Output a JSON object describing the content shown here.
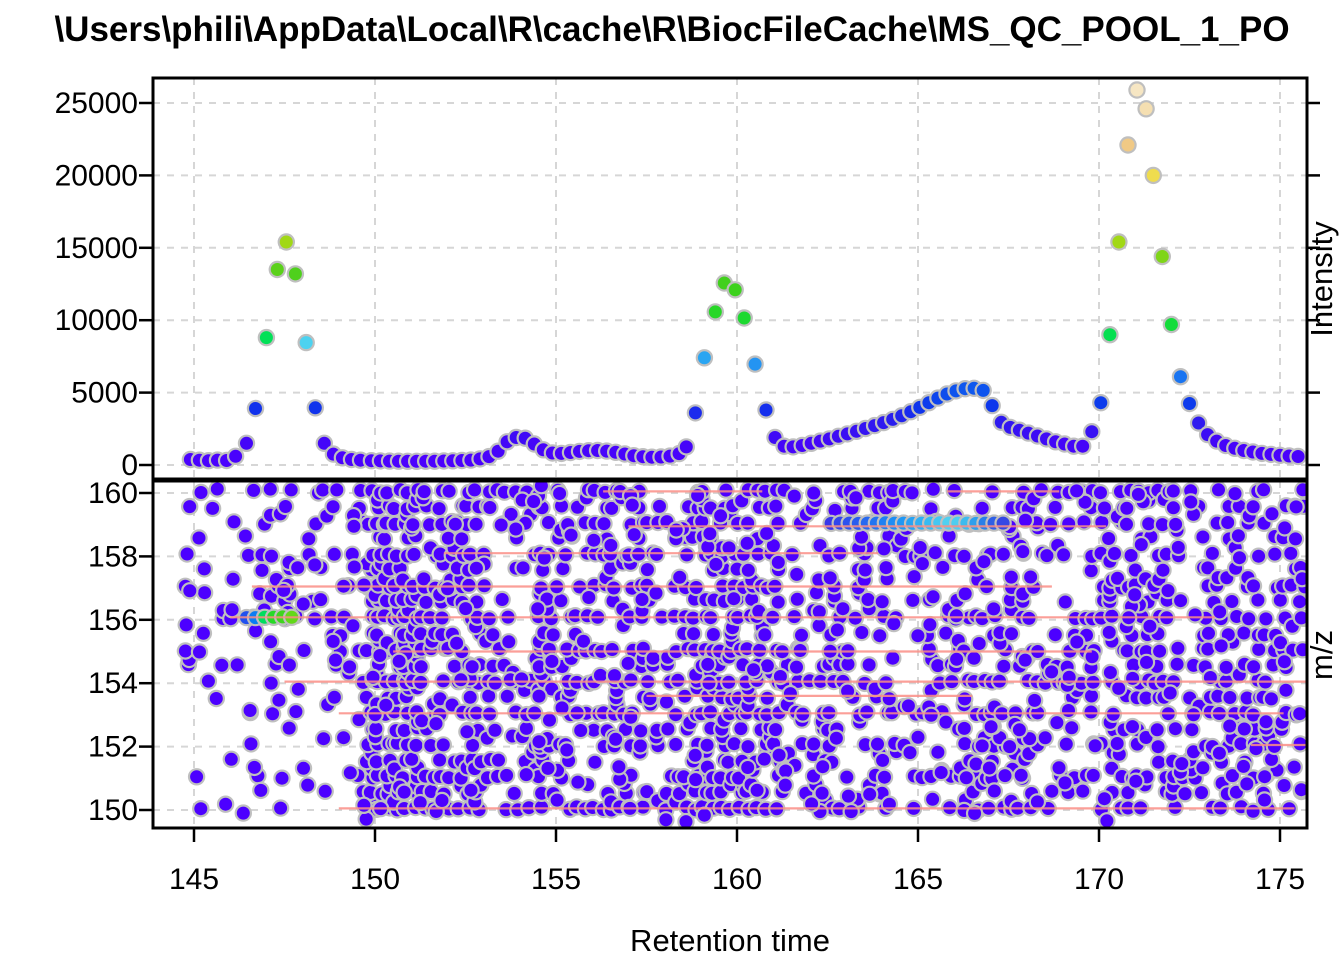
{
  "title": "\\Users\\phili\\AppData\\Local\\R\\cache\\R\\BiocFileCache\\MS_QC_POOL_1_PO",
  "axes": {
    "x": {
      "label": "Retention time",
      "ticks": [
        145,
        150,
        155,
        160,
        165,
        170,
        175
      ],
      "range": [
        143.87,
        175.75
      ]
    },
    "top_y": {
      "label": "Intensity",
      "ticks": [
        0,
        5000,
        10000,
        15000,
        20000,
        25000
      ],
      "range": [
        -970,
        26730
      ]
    },
    "bottom_y": {
      "label": "m/z",
      "ticks": [
        150,
        152,
        154,
        156,
        158,
        160
      ],
      "range": [
        149.43,
        160.38
      ]
    }
  },
  "style": {
    "background": "#FFFFFF",
    "grid_color": "#D6D6D6",
    "axis_color": "#000000",
    "point_stroke": "#BFBFBF",
    "low_color": "#4C00FF",
    "peak_line_color": "#FA8E86",
    "palette": [
      [
        0.0,
        "#4C00FF"
      ],
      [
        0.06,
        "#4406F8"
      ],
      [
        0.12,
        "#2B1DEE"
      ],
      [
        0.155,
        "#0D35EC"
      ],
      [
        0.2,
        "#0E55EE"
      ],
      [
        0.25,
        "#1E82F2"
      ],
      [
        0.3,
        "#2FB4F2"
      ],
      [
        0.327,
        "#4ED4F0"
      ],
      [
        0.335,
        "#00E05A"
      ],
      [
        0.37,
        "#11DC3C"
      ],
      [
        0.42,
        "#2FD51F"
      ],
      [
        0.5,
        "#47CF1C"
      ],
      [
        0.565,
        "#8AD618"
      ],
      [
        0.6,
        "#A8D916"
      ],
      [
        0.68,
        "#CFDB2A"
      ],
      [
        0.77,
        "#EFDC4E"
      ],
      [
        0.85,
        "#F0C985"
      ],
      [
        0.92,
        "#F4DCA8"
      ],
      [
        1.0,
        "#F6E6C4"
      ]
    ]
  },
  "chart_data": [
    {
      "type": "scatter",
      "name": "chromatogram",
      "xlabel": "Retention time",
      "ylabel": "Intensity",
      "xlim": [
        143.87,
        175.75
      ],
      "ylim": [
        -970,
        26730
      ],
      "x_ticks": [
        145,
        150,
        155,
        160,
        165,
        170,
        175
      ],
      "y_ticks": [
        0,
        5000,
        10000,
        15000,
        20000,
        25000
      ],
      "grid": "dashed",
      "color_by": "intensity, topo.colors-style gradient",
      "intensity_max_for_color": 26000,
      "points": [
        [
          144.9,
          380
        ],
        [
          145.15,
          330
        ],
        [
          145.4,
          300
        ],
        [
          145.65,
          340
        ],
        [
          145.9,
          310
        ],
        [
          146.15,
          600
        ],
        [
          146.45,
          1500
        ],
        [
          146.7,
          3900
        ],
        [
          147.0,
          8800
        ],
        [
          147.3,
          13500
        ],
        [
          147.55,
          15400
        ],
        [
          147.8,
          13200
        ],
        [
          148.1,
          8450
        ],
        [
          148.35,
          3950
        ],
        [
          148.6,
          1500
        ],
        [
          148.85,
          750
        ],
        [
          149.1,
          500
        ],
        [
          149.35,
          380
        ],
        [
          149.6,
          330
        ],
        [
          149.9,
          300
        ],
        [
          150.15,
          285
        ],
        [
          150.4,
          270
        ],
        [
          150.65,
          260
        ],
        [
          150.9,
          255
        ],
        [
          151.15,
          255
        ],
        [
          151.4,
          260
        ],
        [
          151.65,
          265
        ],
        [
          151.9,
          275
        ],
        [
          152.15,
          290
        ],
        [
          152.4,
          310
        ],
        [
          152.65,
          340
        ],
        [
          152.9,
          420
        ],
        [
          153.15,
          580
        ],
        [
          153.4,
          950
        ],
        [
          153.65,
          1600
        ],
        [
          153.9,
          1900
        ],
        [
          154.15,
          1850
        ],
        [
          154.4,
          1450
        ],
        [
          154.65,
          1050
        ],
        [
          154.9,
          830
        ],
        [
          155.15,
          800
        ],
        [
          155.4,
          860
        ],
        [
          155.65,
          940
        ],
        [
          155.9,
          990
        ],
        [
          156.15,
          1000
        ],
        [
          156.4,
          960
        ],
        [
          156.65,
          880
        ],
        [
          156.9,
          760
        ],
        [
          157.15,
          640
        ],
        [
          157.4,
          570
        ],
        [
          157.65,
          540
        ],
        [
          157.9,
          555
        ],
        [
          158.15,
          615
        ],
        [
          158.4,
          790
        ],
        [
          158.6,
          1250
        ],
        [
          158.85,
          3600
        ],
        [
          159.1,
          7400
        ],
        [
          159.4,
          10570
        ],
        [
          159.65,
          12570
        ],
        [
          159.95,
          12100
        ],
        [
          160.2,
          10150
        ],
        [
          160.5,
          6970
        ],
        [
          160.8,
          3800
        ],
        [
          161.05,
          1900
        ],
        [
          161.3,
          1300
        ],
        [
          161.55,
          1250
        ],
        [
          161.8,
          1350
        ],
        [
          162.05,
          1500
        ],
        [
          162.3,
          1650
        ],
        [
          162.55,
          1800
        ],
        [
          162.8,
          1980
        ],
        [
          163.05,
          2150
        ],
        [
          163.3,
          2330
        ],
        [
          163.55,
          2520
        ],
        [
          163.8,
          2720
        ],
        [
          164.05,
          2930
        ],
        [
          164.3,
          3150
        ],
        [
          164.55,
          3400
        ],
        [
          164.8,
          3680
        ],
        [
          165.05,
          3980
        ],
        [
          165.3,
          4300
        ],
        [
          165.55,
          4620
        ],
        [
          165.8,
          4900
        ],
        [
          166.05,
          5120
        ],
        [
          166.3,
          5270
        ],
        [
          166.55,
          5300
        ],
        [
          166.8,
          5150
        ],
        [
          167.05,
          4100
        ],
        [
          167.3,
          2950
        ],
        [
          167.55,
          2600
        ],
        [
          167.8,
          2400
        ],
        [
          168.05,
          2200
        ],
        [
          168.3,
          2000
        ],
        [
          168.55,
          1800
        ],
        [
          168.8,
          1600
        ],
        [
          169.05,
          1450
        ],
        [
          169.3,
          1300
        ],
        [
          169.55,
          1300
        ],
        [
          169.8,
          2300
        ],
        [
          170.05,
          4300
        ],
        [
          170.3,
          9000
        ],
        [
          170.55,
          15400
        ],
        [
          170.8,
          22100
        ],
        [
          171.05,
          25900
        ],
        [
          171.3,
          24600
        ],
        [
          171.5,
          20000
        ],
        [
          171.75,
          14400
        ],
        [
          172.0,
          9700
        ],
        [
          172.25,
          6100
        ],
        [
          172.5,
          4250
        ],
        [
          172.75,
          2900
        ],
        [
          173.0,
          2100
        ],
        [
          173.25,
          1650
        ],
        [
          173.5,
          1350
        ],
        [
          173.75,
          1150
        ],
        [
          174.0,
          1000
        ],
        [
          174.25,
          900
        ],
        [
          174.5,
          800
        ],
        [
          174.75,
          730
        ],
        [
          175.0,
          670
        ],
        [
          175.25,
          620
        ],
        [
          175.5,
          590
        ]
      ]
    },
    {
      "type": "scatter",
      "name": "mz-map",
      "xlabel": "Retention time",
      "ylabel": "m/z",
      "xlim": [
        143.87,
        175.75
      ],
      "ylim": [
        149.43,
        160.38
      ],
      "y_ticks": [
        150,
        152,
        154,
        156,
        158,
        160
      ],
      "grid": "dashed",
      "point_color": "#4C00FF",
      "scatter_spec": {
        "seed": 42,
        "base_prob": 0.34,
        "rt_range": [
          144.85,
          175.65
        ],
        "rt_step": 0.25,
        "rt_jitter": 0.1,
        "mz_jitter": 0.055,
        "uniform_n": 240,
        "sparse_left_rt_max": 149.6,
        "sparse_left_mz_max": 154.2,
        "sparse_left_factor": 0.45,
        "rows": [
          [
            150.05,
            1.0
          ],
          [
            150.3,
            0.22
          ],
          [
            150.55,
            0.7
          ],
          [
            150.8,
            0.22
          ],
          [
            151.05,
            1.0
          ],
          [
            151.3,
            0.22
          ],
          [
            151.55,
            0.7
          ],
          [
            151.8,
            0.22
          ],
          [
            152.05,
            1.0
          ],
          [
            152.3,
            0.22
          ],
          [
            152.55,
            0.7
          ],
          [
            152.8,
            0.22
          ],
          [
            153.05,
            1.0
          ],
          [
            153.3,
            0.22
          ],
          [
            153.55,
            0.7
          ],
          [
            153.8,
            0.22
          ],
          [
            154.05,
            1.0
          ],
          [
            154.3,
            0.22
          ],
          [
            154.55,
            0.7
          ],
          [
            154.8,
            0.22
          ],
          [
            155.05,
            1.0
          ],
          [
            155.3,
            0.22
          ],
          [
            155.55,
            0.7
          ],
          [
            155.8,
            0.22
          ],
          [
            156.08,
            1.0
          ],
          [
            156.3,
            0.22
          ],
          [
            156.6,
            0.7
          ],
          [
            156.8,
            0.22
          ],
          [
            157.05,
            1.0
          ],
          [
            157.3,
            0.22
          ],
          [
            157.6,
            0.7
          ],
          [
            157.8,
            0.22
          ],
          [
            158.05,
            1.0
          ],
          [
            158.3,
            0.22
          ],
          [
            158.6,
            0.7
          ],
          [
            158.85,
            0.22
          ],
          [
            159.05,
            1.0
          ],
          [
            159.3,
            0.22
          ],
          [
            159.55,
            0.7
          ],
          [
            159.8,
            0.22
          ],
          [
            160.05,
            1.0
          ]
        ],
        "density_bands": [
          [
            144.85,
            146.7,
            0.8
          ],
          [
            146.7,
            149.6,
            1.0
          ],
          [
            149.85,
            151.35,
            3.2
          ],
          [
            151.35,
            153.25,
            2.2
          ],
          [
            153.25,
            154.5,
            1.1
          ],
          [
            154.5,
            157.7,
            1.7
          ],
          [
            157.7,
            158.55,
            1.3
          ],
          [
            158.55,
            161.35,
            2.3
          ],
          [
            161.35,
            162.1,
            1.0
          ],
          [
            162.1,
            164.6,
            1.3
          ],
          [
            164.6,
            165.8,
            1.1
          ],
          [
            165.8,
            168.3,
            1.55
          ],
          [
            168.3,
            169.4,
            1.1
          ],
          [
            169.4,
            172.35,
            1.8
          ],
          [
            172.35,
            173.0,
            1.2
          ],
          [
            173.0,
            175.7,
            1.45
          ]
        ]
      },
      "highlight_points": [
        [
          146.45,
          156.07,
          "#2050EE"
        ],
        [
          146.7,
          156.07,
          "#0B7CF3"
        ],
        [
          146.95,
          156.08,
          "#00DD5E"
        ],
        [
          147.2,
          156.08,
          "#27D928"
        ],
        [
          147.45,
          156.09,
          "#3FD41F"
        ],
        [
          147.7,
          156.08,
          "#63D81A"
        ],
        [
          162.6,
          159.04,
          "#3937EA"
        ],
        [
          162.85,
          159.05,
          "#3345EC"
        ],
        [
          163.1,
          159.05,
          "#2E51EE"
        ],
        [
          163.35,
          159.04,
          "#2A5DEF"
        ],
        [
          163.6,
          159.05,
          "#2669F0"
        ],
        [
          163.85,
          159.05,
          "#2275F1"
        ],
        [
          164.1,
          159.06,
          "#1F81F2"
        ],
        [
          164.35,
          159.05,
          "#1D8DF4"
        ],
        [
          164.6,
          159.05,
          "#1F97F4"
        ],
        [
          164.85,
          159.04,
          "#27A3F3"
        ],
        [
          165.1,
          159.05,
          "#2FAFF3"
        ],
        [
          165.35,
          159.05,
          "#38BBF2"
        ],
        [
          165.6,
          159.06,
          "#45C7F1"
        ],
        [
          165.85,
          159.05,
          "#50D0F0"
        ],
        [
          166.1,
          159.05,
          "#4FCDEF"
        ],
        [
          166.35,
          159.05,
          "#3DBBEE"
        ],
        [
          166.6,
          159.04,
          "#2F9FEC"
        ],
        [
          166.85,
          159.05,
          "#2A7FE8"
        ],
        [
          167.1,
          159.05,
          "#2E5FE6"
        ],
        [
          167.35,
          159.05,
          "#3648E4"
        ]
      ],
      "peak_lines": [
        [
          160.05,
          156.3,
          160.7
        ],
        [
          160.05,
          165.8,
          168.9
        ],
        [
          158.95,
          157.0,
          170.2
        ],
        [
          158.1,
          151.9,
          163.9
        ],
        [
          157.05,
          146.6,
          168.7
        ],
        [
          156.08,
          146.0,
          173.2
        ],
        [
          155.0,
          150.5,
          169.8
        ],
        [
          154.05,
          147.5,
          175.9
        ],
        [
          153.6,
          157.5,
          166.5
        ],
        [
          153.05,
          149.0,
          175.1
        ],
        [
          152.05,
          174.2,
          175.9
        ],
        [
          150.05,
          149.0,
          175.4
        ]
      ]
    }
  ]
}
